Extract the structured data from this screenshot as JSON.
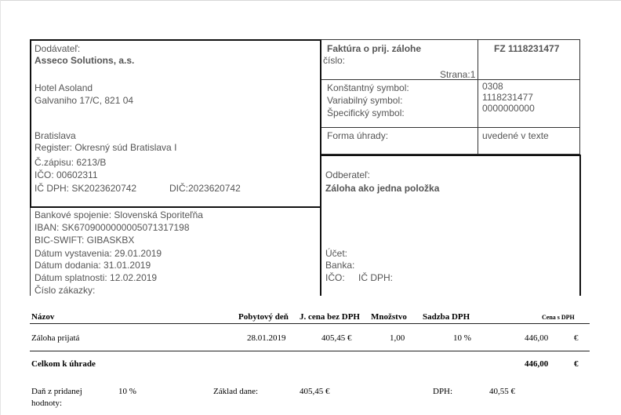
{
  "supplier": {
    "heading": "Dodávateľ:",
    "name": "Asseco Solutions, a.s.",
    "addr1": "Hotel Asoland",
    "addr2": "Galvaniho 17/C, 821 04",
    "city": "Bratislava",
    "register": "Register: Okresný súd Bratislava I",
    "zapis": "Č.zápisu: 6213/B",
    "ico": "IČO: 00602311",
    "icdph": "IČ DPH: SK2023620742",
    "dic": "DIČ:2023620742"
  },
  "invoice": {
    "title": "Faktúra o prij. zálohe",
    "number_label": "číslo:",
    "number": "FZ 1118231477",
    "page": "Strana:1",
    "symbols_labels": [
      "Konštantný symbol:",
      "Variabilný symbol:",
      "Špecifický symbol:"
    ],
    "symbols_values": [
      "0308",
      "1118231477",
      "0000000000"
    ],
    "payment_label": "Forma úhrady:",
    "payment_value": "uvedené v texte"
  },
  "customer": {
    "heading": "Odberateľ:",
    "name": "Záloha ako jedna položka",
    "account": "Účet:",
    "bank": "Banka:",
    "ico": "IČO:",
    "icdph": "IČ DPH:"
  },
  "bank_info": [
    "Bankové spojenie: Slovenská Sporiteľňa",
    "IBAN: SK6709000000005071317198",
    "BIC-SWIFT: GIBASKBX",
    "Dátum vystavenia: 29.01.2019",
    "Dátum dodania: 31.01.2019",
    "Dátum splatnosti: 12.02.2019",
    "Číslo zákazky:"
  ],
  "table": {
    "headers": {
      "name": "Názov",
      "stay_day": "Pobytový deň",
      "unit_price": "J. cena bez DPH",
      "qty": "Množstvo",
      "vat_rate": "Sadzba DPH",
      "price_vat": "Cena s DPH"
    },
    "rows": [
      {
        "name": "Záloha prijatá",
        "stay_day": "28.01.2019",
        "unit_price": "405,45 €",
        "qty": "1,00",
        "vat_rate": "10 %",
        "price_vat": "446,00",
        "currency": "€"
      }
    ],
    "total_label": "Celkom k úhrade",
    "total_value": "446,00",
    "total_currency": "€"
  },
  "summary": {
    "tax_label_1": "Daň z pridanej",
    "tax_label_2": "hodnoty:",
    "rate": "10 %",
    "base_label": "Základ dane:",
    "base_value": "405,45 €",
    "dph_label": "DPH:",
    "dph_value": "40,55 €"
  }
}
